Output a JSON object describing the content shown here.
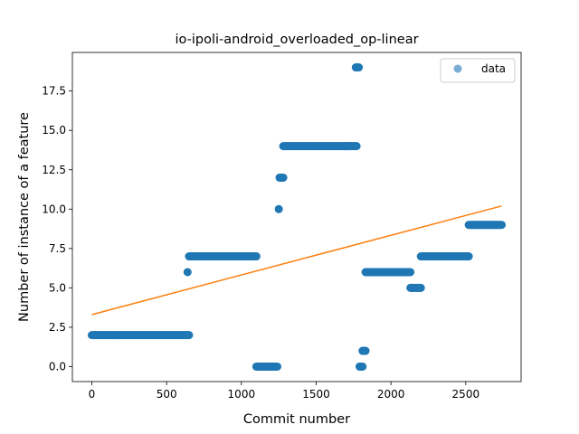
{
  "chart_data": {
    "type": "scatter",
    "title": "io-ipoli-android_overloaded_op-linear",
    "xlabel": "Commit number",
    "ylabel": "Number of instance of a feature",
    "xlim": [
      -130,
      2870
    ],
    "ylim": [
      -0.95,
      19.95
    ],
    "xticks": [
      0,
      500,
      1000,
      1500,
      2000,
      2500
    ],
    "yticks": [
      0.0,
      2.5,
      5.0,
      7.5,
      10.0,
      12.5,
      15.0,
      17.5
    ],
    "xtick_labels": [
      "0",
      "500",
      "1000",
      "1500",
      "2000",
      "2500"
    ],
    "ytick_labels": [
      "0.0",
      "2.5",
      "5.0",
      "7.5",
      "10.0",
      "12.5",
      "15.0",
      "17.5"
    ],
    "grid": false,
    "legend": {
      "position": "top-right",
      "entries": [
        "data"
      ]
    },
    "colors": {
      "data": "#1f77b4",
      "fit": "#ff7f0e"
    },
    "series": [
      {
        "name": "data",
        "kind": "scatter",
        "segments": [
          {
            "x_start": 0,
            "x_end": 650,
            "y": 2
          },
          {
            "x_start": 640,
            "x_end": 640,
            "y": 6
          },
          {
            "x_start": 650,
            "x_end": 1100,
            "y": 7
          },
          {
            "x_start": 1100,
            "x_end": 1240,
            "y": 0
          },
          {
            "x_start": 1250,
            "x_end": 1250,
            "y": 10
          },
          {
            "x_start": 1255,
            "x_end": 1280,
            "y": 12
          },
          {
            "x_start": 1280,
            "x_end": 1770,
            "y": 14
          },
          {
            "x_start": 1765,
            "x_end": 1785,
            "y": 19
          },
          {
            "x_start": 1790,
            "x_end": 1810,
            "y": 0
          },
          {
            "x_start": 1810,
            "x_end": 1830,
            "y": 1
          },
          {
            "x_start": 1830,
            "x_end": 2130,
            "y": 6
          },
          {
            "x_start": 2130,
            "x_end": 2200,
            "y": 5
          },
          {
            "x_start": 2200,
            "x_end": 2520,
            "y": 7
          },
          {
            "x_start": 2520,
            "x_end": 2740,
            "y": 9
          }
        ]
      },
      {
        "name": "",
        "kind": "line",
        "x": [
          0,
          2740
        ],
        "y": [
          3.3,
          10.2
        ]
      }
    ]
  }
}
